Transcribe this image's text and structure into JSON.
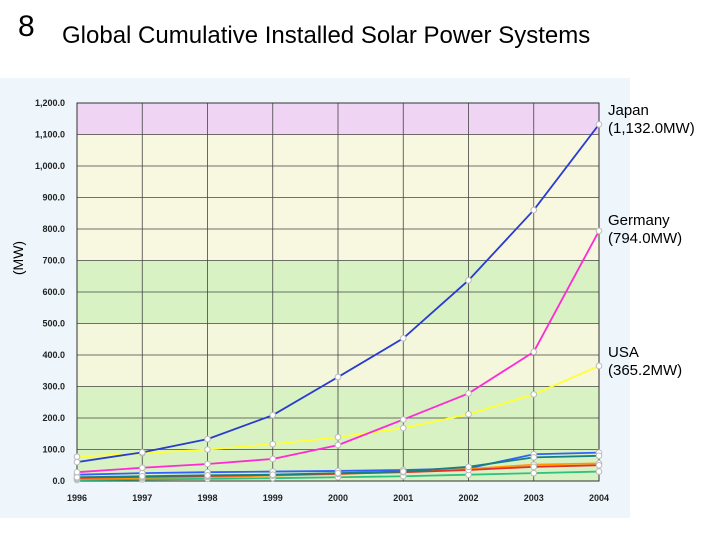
{
  "slide": {
    "number": "8",
    "title": "Global Cumulative Installed Solar Power Systems"
  },
  "chart_data": {
    "type": "line",
    "title": "Global Cumulative Installed Solar Power Systems",
    "ylabel": "(MW)",
    "xlabel": "",
    "categories": [
      "1996",
      "1997",
      "1998",
      "1999",
      "2000",
      "2001",
      "2002",
      "2003",
      "2004"
    ],
    "ylim": [
      0,
      1200
    ],
    "yticks": [
      "0.0",
      "100.0",
      "200.0",
      "300.0",
      "400.0",
      "500.0",
      "600.0",
      "700.0",
      "800.0",
      "900.0",
      "1,000.0",
      "1,100.0",
      "1,200.0"
    ],
    "grid": true,
    "series": [
      {
        "color": "#2a3bd0",
        "values": [
          60,
          91,
          133,
          209,
          330,
          453,
          637,
          860,
          1132
        ]
      },
      {
        "color": "#ff2ad4",
        "values": [
          28,
          42,
          54,
          70,
          114,
          195,
          278,
          410,
          794
        ]
      },
      {
        "color": "#ffff33",
        "values": [
          77,
          88,
          100,
          117,
          139,
          168,
          212,
          275,
          365.2
        ]
      },
      {
        "color": "#1a7f7f",
        "values": [
          12,
          15,
          18,
          20,
          25,
          30,
          45,
          75,
          80
        ]
      },
      {
        "color": "#e03030",
        "values": [
          10,
          13,
          16,
          19,
          23,
          28,
          35,
          45,
          50
        ]
      },
      {
        "color": "#ff9900",
        "values": [
          7,
          10,
          13,
          17,
          22,
          30,
          38,
          52,
          56
        ]
      },
      {
        "color": "#30c080",
        "values": [
          3,
          5,
          7,
          9,
          12,
          15,
          20,
          25,
          30
        ]
      },
      {
        "color": "#3060ff",
        "values": [
          20,
          25,
          28,
          30,
          32,
          35,
          40,
          85,
          90
        ]
      }
    ],
    "annotations": [
      {
        "line1": "Japan",
        "line2": "(1,132.0MW)"
      },
      {
        "line1": "Germany",
        "line2": "(794.0MW)"
      },
      {
        "line1": "USA",
        "line2": "(365.2MW)"
      }
    ],
    "bands": [
      {
        "from": 0,
        "to": 300,
        "color": "#d8f2c4"
      },
      {
        "from": 300,
        "to": 500,
        "color": "#f4f7dc"
      },
      {
        "from": 500,
        "to": 700,
        "color": "#d8f2c4"
      },
      {
        "from": 700,
        "to": 1100,
        "color": "#f8f8e0"
      },
      {
        "from": 1100,
        "to": 1200,
        "color": "#f0d4f4"
      }
    ]
  }
}
